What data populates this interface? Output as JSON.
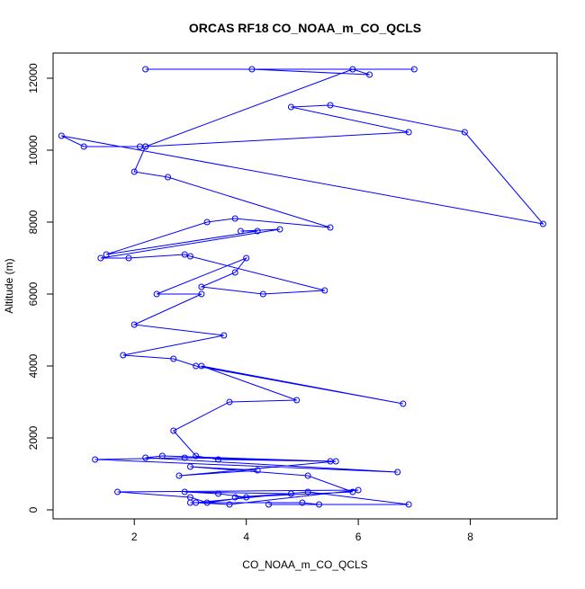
{
  "chart_data": {
    "type": "line",
    "title": "ORCAS RF18 CO_NOAA_m_CO_QCLS",
    "xlabel": "CO_NOAA_m_CO_QCLS",
    "ylabel": "Altitude (m)",
    "xlim": [
      0.55,
      9.55
    ],
    "ylim": [
      -250,
      12700
    ],
    "xticks": [
      2,
      4,
      6,
      8
    ],
    "xtick_labels": [
      "2",
      "4",
      "6",
      "8"
    ],
    "yticks": [
      0,
      2000,
      4000,
      6000,
      8000,
      10000,
      12000
    ],
    "ytick_labels": [
      "0",
      "2000",
      "4000",
      "6000",
      "8000",
      "10000",
      "12000"
    ],
    "grid": false,
    "legend": "none",
    "colors": {
      "series": "#0000ff",
      "axis": "#000000",
      "background": "#ffffff"
    },
    "marker": "open-circle",
    "series": [
      {
        "x": [
          2.2,
          7.0,
          4.1,
          6.2,
          5.9,
          2.2,
          6.9,
          4.8,
          5.5,
          7.9,
          9.3,
          0.7,
          1.1,
          2.1,
          2.2,
          2.0,
          2.6,
          5.5,
          3.8,
          3.3,
          1.5,
          4.2,
          3.9,
          4.6,
          1.4,
          1.9,
          2.9,
          3.0,
          5.4,
          4.3,
          3.2,
          3.8,
          4.0,
          2.4,
          3.2,
          2.0,
          3.6,
          1.8,
          2.7,
          3.1,
          6.8,
          3.2,
          4.9,
          3.7,
          2.7,
          3.1,
          3.5,
          5.5,
          2.5,
          2.2,
          6.7,
          1.3,
          2.9,
          5.6,
          2.8,
          4.2,
          3.0,
          5.1,
          5.9,
          3.8,
          4.8,
          2.9,
          3.5,
          4.0,
          3.3,
          3.0,
          1.7,
          6.0,
          3.7,
          3.1,
          5.1,
          6.9,
          4.4,
          5.3,
          5.0,
          3.0
        ],
        "y": [
          12250,
          12250,
          12250,
          12100,
          12250,
          10100,
          10500,
          11200,
          11250,
          10500,
          7950,
          10400,
          10100,
          10100,
          10100,
          9400,
          9250,
          7850,
          8100,
          8000,
          7100,
          7750,
          7750,
          7800,
          7000,
          7000,
          7100,
          7050,
          6100,
          6000,
          6200,
          6600,
          7000,
          6000,
          6000,
          5150,
          4850,
          4300,
          4200,
          4000,
          2950,
          4000,
          3050,
          3000,
          2200,
          1500,
          1400,
          1350,
          1500,
          1450,
          1050,
          1400,
          1450,
          1350,
          950,
          1100,
          1200,
          950,
          500,
          350,
          450,
          500,
          450,
          350,
          200,
          350,
          500,
          550,
          150,
          200,
          500,
          150,
          150,
          150,
          200,
          200
        ]
      }
    ]
  }
}
